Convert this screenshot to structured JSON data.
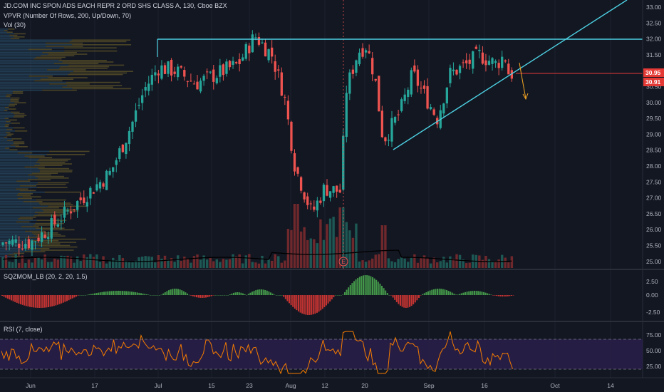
{
  "header": {
    "symbol_line": "JD.COM INC SPON ADS EACH REPR 2 ORD SHS CLASS A, 130, Cboe BZX",
    "vpvr_label": "VPVR (Number Of Rows, 200, Up/Down, 70)",
    "vol_label": "Vol (30)"
  },
  "colors": {
    "background": "#131722",
    "up": "#26a69a",
    "down": "#ef5350",
    "resistance_line": "#4dd0e1",
    "price_tag_red": "#e53935",
    "rsi_line": "#f57c00",
    "rsi_band": "#2a1f4a",
    "sqz_green": "#4caf50",
    "sqz_red": "#e53935"
  },
  "price_axis": {
    "ticks": [
      "33.00",
      "32.50",
      "32.00",
      "31.50",
      "31.00",
      "30.50",
      "30.00",
      "29.50",
      "29.00",
      "28.50",
      "28.00",
      "27.50",
      "27.00",
      "26.50",
      "26.00",
      "25.50",
      "25.00"
    ],
    "tag_upper": "30.95",
    "tag_lower": "30.91"
  },
  "sqz_panel": {
    "label": "SQZMOM_LB (20, 2, 20, 1.5)",
    "ticks": [
      "2.50",
      "0.00",
      "-2.50"
    ]
  },
  "rsi_panel": {
    "label": "RSI (7, close)",
    "ticks": [
      "75.00",
      "50.00",
      "25.00"
    ]
  },
  "time_axis": {
    "labels": [
      "Jun",
      "17",
      "Jul",
      "15",
      "23",
      "Aug",
      "12",
      "20",
      "Sep",
      "16",
      "Oct",
      "14"
    ]
  },
  "earnings_marker": "E",
  "chart_data": {
    "type": "candlestick",
    "title": "JD.COM INC SPON ADS EACH REPR 2 ORD SHS CLASS A, 130, Cboe BZX",
    "ylim": [
      24.9,
      33.2
    ],
    "levels": {
      "resistance": 32.0,
      "current_upper": 30.95,
      "current_lower": 30.91
    },
    "trendline": {
      "from": {
        "date": "Aug 23",
        "price": 28.55
      },
      "to": {
        "date": "Sep 20",
        "price": 30.85
      }
    },
    "close_path": [
      [
        "Jun 1",
        25.6
      ],
      [
        "Jun 5",
        26.0
      ],
      [
        "Jun 10",
        26.6
      ],
      [
        "Jun 15",
        27.2
      ],
      [
        "Jun 20",
        27.8
      ],
      [
        "Jun 25",
        29.3
      ],
      [
        "Jun 28",
        30.4
      ],
      [
        "Jul 1",
        31.1
      ],
      [
        "Jul 5",
        31.0
      ],
      [
        "Jul 10",
        30.6
      ],
      [
        "Jul 15",
        30.9
      ],
      [
        "Jul 20",
        31.2
      ],
      [
        "Jul 24",
        32.1
      ],
      [
        "Jul 28",
        31.5
      ],
      [
        "Jul 31",
        30.2
      ],
      [
        "Aug 2",
        28.0
      ],
      [
        "Aug 6",
        26.5
      ],
      [
        "Aug 9",
        27.3
      ],
      [
        "Aug 13",
        27.2
      ],
      [
        "Aug 14",
        30.3
      ],
      [
        "Aug 17",
        31.6
      ],
      [
        "Aug 19",
        31.8
      ],
      [
        "Aug 21",
        30.8
      ],
      [
        "Aug 23",
        28.8
      ],
      [
        "Aug 27",
        29.7
      ],
      [
        "Aug 30",
        30.9
      ],
      [
        "Sep 3",
        29.5
      ],
      [
        "Sep 6",
        30.9
      ],
      [
        "Sep 10",
        31.2
      ],
      [
        "Sep 13",
        31.5
      ],
      [
        "Sep 17",
        31.2
      ],
      [
        "Sep 19",
        31.5
      ],
      [
        "Sep 20",
        30.9
      ]
    ],
    "rsi_levels": [
      75,
      50,
      25
    ]
  }
}
